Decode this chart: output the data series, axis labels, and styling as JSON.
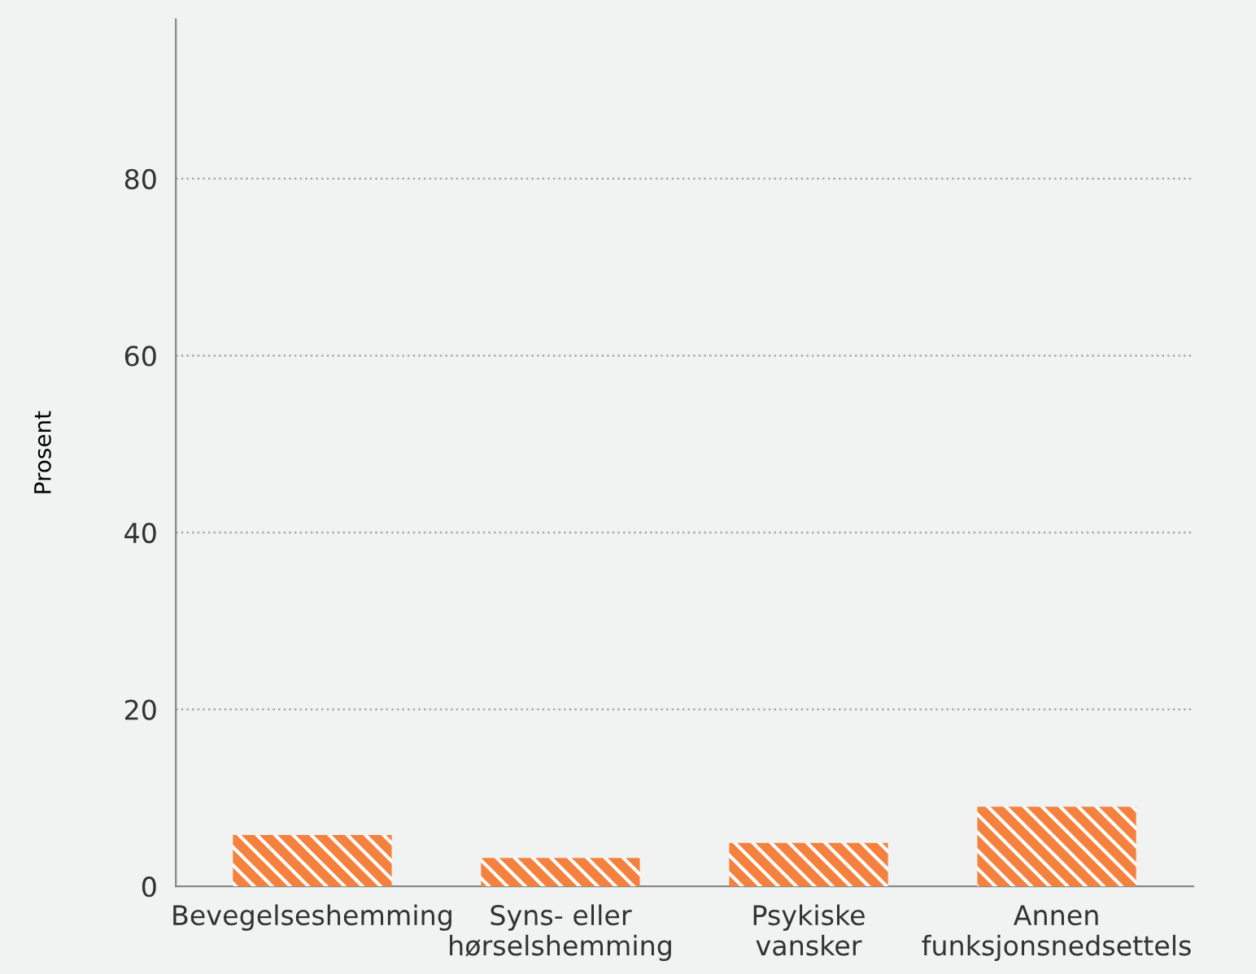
{
  "chart_data": {
    "type": "bar",
    "ylabel": "Prosent",
    "categories": [
      "Bevegelseshemming",
      "Syns- eller\nhørselshemming",
      "Psykiske\nvansker",
      "Annen\nfunksjonsnedsettels"
    ],
    "values": [
      5.8,
      3.2,
      4.9,
      9.0
    ],
    "color": "#f5813f",
    "ylim": [
      0,
      98
    ],
    "yticks": [
      0,
      20,
      40,
      60,
      80
    ],
    "grid": "y"
  }
}
